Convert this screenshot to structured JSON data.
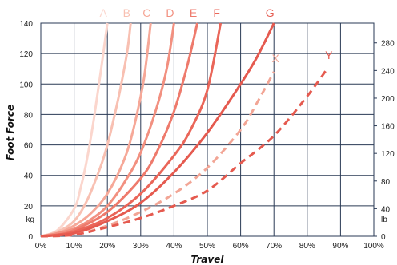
{
  "chart_data": {
    "type": "line",
    "xlabel": "Travel",
    "ylabel": "Foot Force",
    "y_unit_left": "kg",
    "y_unit_right": "lb",
    "x_ticks": [
      "0%",
      "10%",
      "20%",
      "30%",
      "40%",
      "50%",
      "60%",
      "70%",
      "80%",
      "90%",
      "100%"
    ],
    "xlim": [
      0,
      100
    ],
    "ylim": [
      0,
      140
    ],
    "y_ticks": [
      0,
      20,
      40,
      60,
      80,
      100,
      120,
      140
    ],
    "y2lim": [
      0,
      308.6
    ],
    "y2_ticks": [
      0,
      40,
      80,
      120,
      160,
      200,
      240,
      280
    ],
    "grid": true,
    "series": [
      {
        "name": "A",
        "color": "#fbd6cd",
        "dash": false,
        "x": [
          0,
          5,
          10,
          12,
          14,
          16,
          18,
          20
        ],
        "y": [
          0,
          4,
          18,
          32,
          52,
          78,
          108,
          140
        ]
      },
      {
        "name": "B",
        "color": "#f8c0b2",
        "dash": false,
        "x": [
          0,
          5,
          10,
          14,
          18,
          20,
          22,
          24,
          26,
          27
        ],
        "y": [
          0,
          3,
          10,
          24,
          46,
          60,
          78,
          98,
          122,
          140
        ]
      },
      {
        "name": "C",
        "color": "#f6a898",
        "dash": false,
        "x": [
          0,
          5,
          10,
          15,
          20,
          25,
          28,
          31,
          33
        ],
        "y": [
          0,
          2,
          7,
          15,
          28,
          50,
          72,
          104,
          140
        ]
      },
      {
        "name": "D",
        "color": "#f29080",
        "dash": false,
        "x": [
          0,
          5,
          10,
          15,
          20,
          25,
          30,
          35,
          38,
          40
        ],
        "y": [
          0,
          2,
          5,
          11,
          20,
          35,
          55,
          86,
          112,
          140
        ]
      },
      {
        "name": "E",
        "color": "#ee7a6c",
        "dash": false,
        "x": [
          0,
          5,
          10,
          20,
          30,
          35,
          40,
          44,
          47
        ],
        "y": [
          0,
          1,
          4,
          16,
          38,
          56,
          82,
          112,
          140
        ]
      },
      {
        "name": "F",
        "color": "#ea6659",
        "dash": false,
        "x": [
          0,
          5,
          10,
          20,
          30,
          40,
          45,
          50,
          54
        ],
        "y": [
          0,
          1,
          3,
          12,
          28,
          53,
          70,
          96,
          140
        ]
      },
      {
        "name": "G",
        "color": "#e55a4f",
        "dash": false,
        "x": [
          0,
          10,
          20,
          30,
          40,
          50,
          60,
          65,
          70
        ],
        "y": [
          0,
          2,
          10,
          22,
          42,
          68,
          100,
          118,
          140
        ]
      },
      {
        "name": "X",
        "color": "#f2a595",
        "dash": true,
        "x": [
          0,
          10,
          20,
          30,
          40,
          50,
          60,
          65,
          70
        ],
        "y": [
          0,
          1,
          7,
          16,
          28,
          45,
          70,
          88,
          108
        ]
      },
      {
        "name": "Y",
        "color": "#e55a4f",
        "dash": true,
        "x": [
          0,
          10,
          20,
          30,
          40,
          50,
          60,
          70,
          80,
          86
        ],
        "y": [
          0,
          1,
          6,
          12,
          20,
          30,
          48,
          66,
          92,
          110
        ]
      }
    ]
  }
}
